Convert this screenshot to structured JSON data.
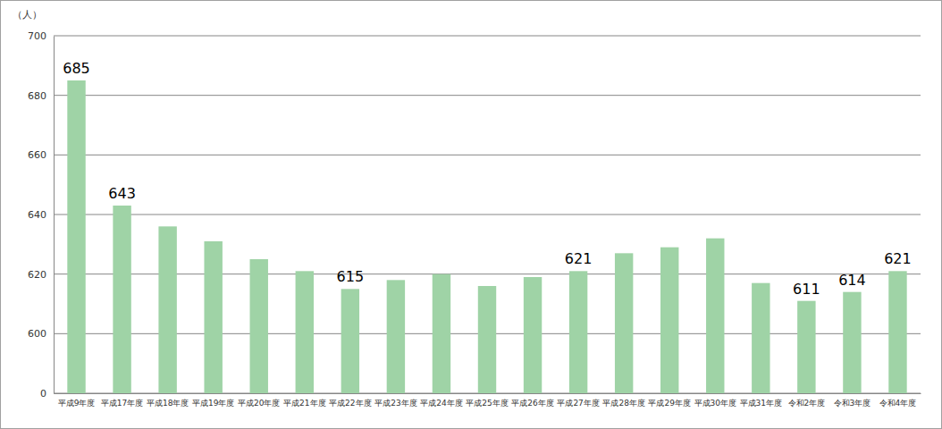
{
  "chart_data": {
    "type": "bar",
    "y_label": "（人）",
    "categories": [
      "平成9年度",
      "平成17年度",
      "平成18年度",
      "平成19年度",
      "平成20年度",
      "平成21年度",
      "平成22年度",
      "平成23年度",
      "平成24年度",
      "平成25年度",
      "平成26年度",
      "平成27年度",
      "平成28年度",
      "平成29年度",
      "平成30年度",
      "平成31年度",
      "令和2年度",
      "令和3年度",
      "令和4年度"
    ],
    "values": [
      685,
      643,
      636,
      631,
      625,
      621,
      615,
      618,
      620,
      616,
      619,
      621,
      627,
      629,
      632,
      617,
      611,
      614,
      621
    ],
    "value_labels": [
      "685",
      "643",
      null,
      null,
      null,
      null,
      "615",
      null,
      null,
      null,
      null,
      "621",
      null,
      null,
      null,
      null,
      "611",
      "614",
      "621"
    ],
    "data_labels": true,
    "color": "#9fd3a6",
    "ylim": [
      0,
      700
    ],
    "yticks": [
      0,
      600,
      620,
      640,
      660,
      680,
      700
    ],
    "grid": true
  }
}
